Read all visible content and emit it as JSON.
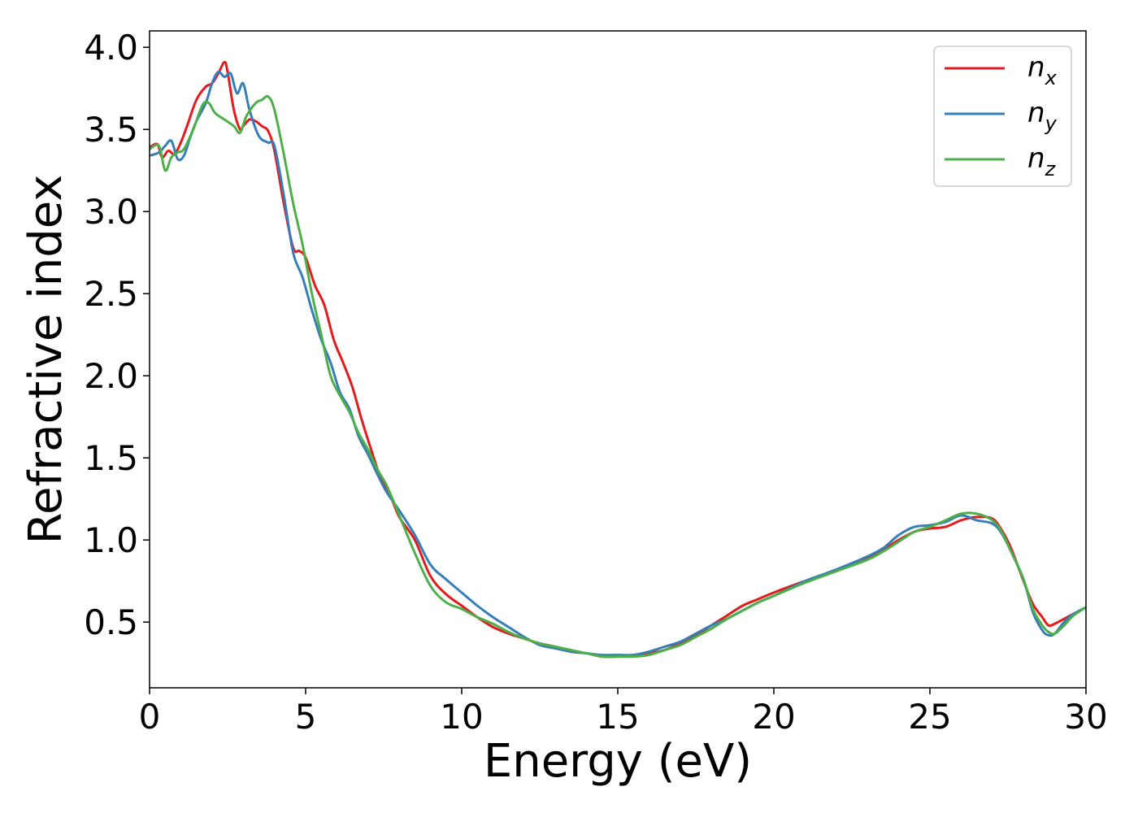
{
  "chart_data": {
    "type": "line",
    "title": "",
    "xlabel": "Energy (eV)",
    "ylabel": "Refractive index",
    "xlim": [
      0,
      30
    ],
    "ylim": [
      0.1,
      4.1
    ],
    "xticks": [
      0,
      5,
      10,
      15,
      20,
      25,
      30
    ],
    "yticks": [
      0.5,
      1.0,
      1.5,
      2.0,
      2.5,
      3.0,
      3.5,
      4.0
    ],
    "xtick_labels": [
      "0",
      "5",
      "10",
      "15",
      "20",
      "25",
      "30"
    ],
    "ytick_labels": [
      "0.5",
      "1.0",
      "1.5",
      "2.0",
      "2.5",
      "3.0",
      "3.5",
      "4.0"
    ],
    "grid": false,
    "legend_position": "top-right",
    "series": [
      {
        "name": "n_x",
        "legend_main": "n",
        "legend_sub": "x",
        "color": "#e41a1c",
        "x": [
          0,
          0.25,
          0.4,
          0.6,
          0.8,
          1.0,
          1.2,
          1.5,
          1.8,
          2.0,
          2.2,
          2.4,
          2.5,
          2.7,
          2.9,
          3.0,
          3.2,
          3.4,
          3.6,
          3.8,
          4.0,
          4.3,
          4.6,
          4.8,
          5.0,
          5.3,
          5.6,
          5.9,
          6.2,
          6.5,
          6.8,
          7.1,
          7.4,
          7.7,
          8.0,
          8.5,
          9.0,
          9.5,
          10.0,
          10.5,
          11.0,
          11.5,
          12.0,
          12.5,
          13.0,
          13.5,
          14.0,
          14.5,
          15.0,
          15.5,
          16.0,
          16.5,
          17.0,
          17.5,
          18.0,
          18.5,
          19.0,
          19.5,
          20.0,
          21.0,
          22.0,
          23.0,
          23.5,
          24.0,
          24.5,
          25.0,
          25.5,
          26.0,
          26.5,
          27.0,
          27.3,
          27.6,
          28.0,
          28.3,
          28.6,
          28.8,
          29.0,
          29.3,
          29.6,
          30.0
        ],
        "y": [
          3.39,
          3.41,
          3.33,
          3.37,
          3.35,
          3.42,
          3.52,
          3.68,
          3.76,
          3.78,
          3.84,
          3.91,
          3.85,
          3.62,
          3.5,
          3.52,
          3.56,
          3.55,
          3.52,
          3.49,
          3.37,
          3.05,
          2.78,
          2.76,
          2.72,
          2.55,
          2.43,
          2.22,
          2.08,
          1.93,
          1.73,
          1.55,
          1.38,
          1.28,
          1.14,
          1.0,
          0.78,
          0.67,
          0.6,
          0.53,
          0.47,
          0.43,
          0.4,
          0.37,
          0.35,
          0.32,
          0.31,
          0.29,
          0.29,
          0.3,
          0.31,
          0.33,
          0.37,
          0.42,
          0.48,
          0.54,
          0.6,
          0.64,
          0.68,
          0.75,
          0.81,
          0.89,
          0.94,
          1.0,
          1.05,
          1.07,
          1.08,
          1.12,
          1.14,
          1.13,
          1.06,
          0.95,
          0.75,
          0.61,
          0.53,
          0.48,
          0.49,
          0.52,
          0.55,
          0.59
        ]
      },
      {
        "name": "n_y",
        "legend_main": "n",
        "legend_sub": "y",
        "color": "#377eb8",
        "x": [
          0,
          0.3,
          0.5,
          0.7,
          0.9,
          1.1,
          1.3,
          1.5,
          1.8,
          2.0,
          2.2,
          2.4,
          2.6,
          2.8,
          3.0,
          3.2,
          3.5,
          3.8,
          4.0,
          4.3,
          4.6,
          4.9,
          5.2,
          5.5,
          5.8,
          6.1,
          6.4,
          6.7,
          7.0,
          7.3,
          7.6,
          8.0,
          8.5,
          9.0,
          9.5,
          10.0,
          10.5,
          11.0,
          11.5,
          12.0,
          12.5,
          13.0,
          13.5,
          14.0,
          14.5,
          15.0,
          15.5,
          16.0,
          16.5,
          17.0,
          17.5,
          18.0,
          18.5,
          19.0,
          19.5,
          20.0,
          21.0,
          22.0,
          23.0,
          23.5,
          24.0,
          24.5,
          25.0,
          25.5,
          26.0,
          26.5,
          27.0,
          27.3,
          27.6,
          28.0,
          28.3,
          28.6,
          28.8,
          29.0,
          29.3,
          29.6,
          30.0
        ],
        "y": [
          3.34,
          3.36,
          3.4,
          3.43,
          3.32,
          3.34,
          3.45,
          3.55,
          3.66,
          3.78,
          3.85,
          3.82,
          3.84,
          3.72,
          3.78,
          3.62,
          3.46,
          3.42,
          3.4,
          3.1,
          2.75,
          2.6,
          2.4,
          2.22,
          2.08,
          1.9,
          1.8,
          1.63,
          1.52,
          1.4,
          1.29,
          1.18,
          1.03,
          0.85,
          0.76,
          0.68,
          0.6,
          0.53,
          0.47,
          0.41,
          0.36,
          0.34,
          0.32,
          0.31,
          0.3,
          0.3,
          0.3,
          0.32,
          0.35,
          0.38,
          0.43,
          0.48,
          0.52,
          0.57,
          0.62,
          0.66,
          0.75,
          0.82,
          0.9,
          0.95,
          1.03,
          1.08,
          1.09,
          1.11,
          1.15,
          1.12,
          1.1,
          1.04,
          0.93,
          0.76,
          0.56,
          0.45,
          0.42,
          0.43,
          0.5,
          0.55,
          0.59
        ]
      },
      {
        "name": "n_z",
        "legend_main": "n",
        "legend_sub": "z",
        "color": "#4daf4a",
        "x": [
          0,
          0.3,
          0.5,
          0.7,
          0.9,
          1.1,
          1.4,
          1.7,
          1.9,
          2.1,
          2.4,
          2.7,
          2.9,
          3.1,
          3.4,
          3.6,
          3.8,
          4.0,
          4.3,
          4.6,
          4.9,
          5.2,
          5.5,
          5.8,
          6.1,
          6.4,
          6.7,
          7.0,
          7.3,
          7.6,
          8.0,
          8.5,
          9.0,
          9.5,
          10.0,
          10.5,
          11.0,
          11.5,
          12.0,
          12.5,
          13.0,
          13.5,
          14.0,
          14.5,
          15.0,
          15.5,
          16.0,
          16.5,
          17.0,
          17.5,
          18.0,
          18.5,
          19.0,
          19.5,
          20.0,
          21.0,
          22.0,
          23.0,
          23.5,
          24.0,
          24.5,
          25.0,
          25.5,
          26.0,
          26.5,
          27.0,
          27.3,
          27.6,
          28.0,
          28.3,
          28.6,
          28.8,
          29.0,
          29.3,
          29.6,
          30.0
        ],
        "y": [
          3.38,
          3.4,
          3.25,
          3.33,
          3.36,
          3.38,
          3.5,
          3.65,
          3.66,
          3.6,
          3.56,
          3.52,
          3.48,
          3.58,
          3.66,
          3.68,
          3.7,
          3.62,
          3.35,
          3.05,
          2.8,
          2.5,
          2.25,
          2.0,
          1.88,
          1.78,
          1.65,
          1.55,
          1.43,
          1.33,
          1.15,
          0.92,
          0.72,
          0.62,
          0.58,
          0.53,
          0.49,
          0.44,
          0.4,
          0.37,
          0.35,
          0.33,
          0.31,
          0.29,
          0.29,
          0.29,
          0.3,
          0.33,
          0.36,
          0.41,
          0.46,
          0.52,
          0.57,
          0.62,
          0.66,
          0.74,
          0.81,
          0.88,
          0.93,
          0.99,
          1.05,
          1.08,
          1.12,
          1.16,
          1.16,
          1.12,
          1.05,
          0.93,
          0.76,
          0.58,
          0.48,
          0.44,
          0.43,
          0.48,
          0.54,
          0.59
        ]
      }
    ]
  }
}
